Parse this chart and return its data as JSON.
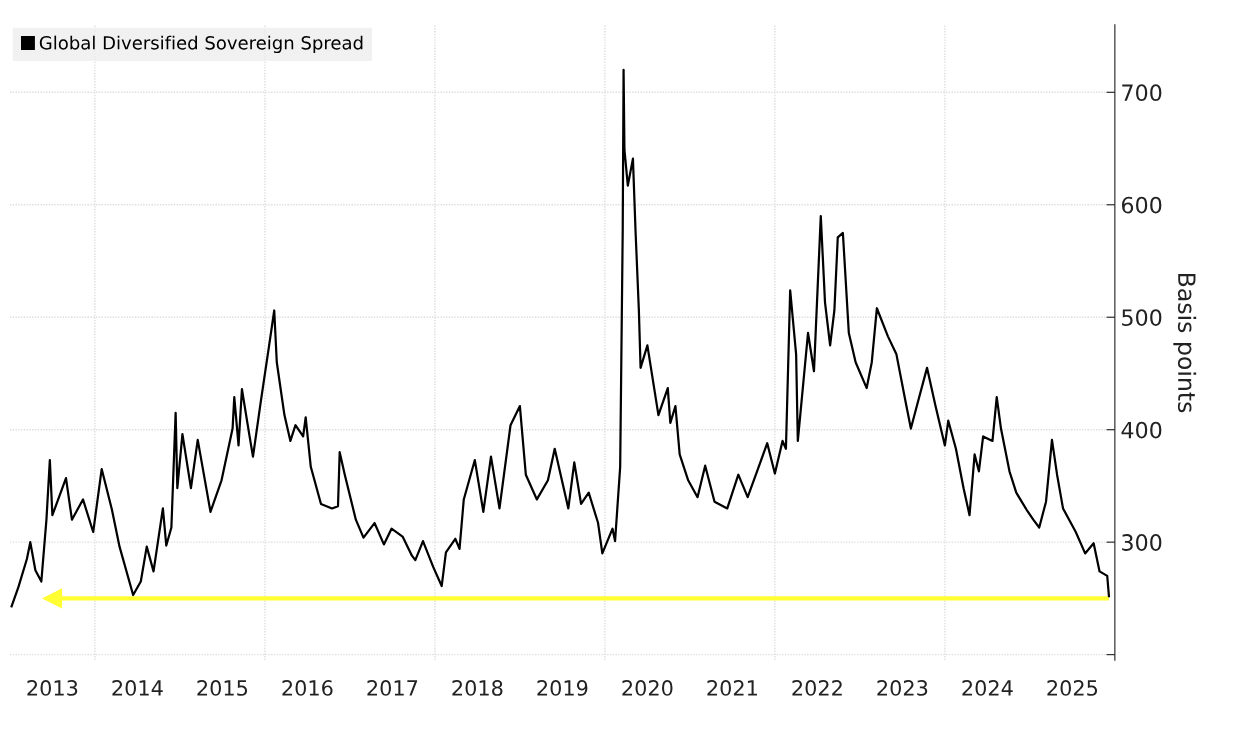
{
  "chart_data": {
    "type": "line",
    "ylabel": "Basis points",
    "xlim": [
      2013.0,
      2026.0
    ],
    "xticks": [
      {
        "value": 2013.5,
        "label": "2013"
      },
      {
        "value": 2014.0,
        "label": null
      },
      {
        "value": 2014.5,
        "label": "2014"
      },
      {
        "value": 2015.5,
        "label": "2015"
      },
      {
        "value": 2016.0,
        "label": null
      },
      {
        "value": 2016.5,
        "label": "2016"
      },
      {
        "value": 2017.5,
        "label": "2017"
      },
      {
        "value": 2018.0,
        "label": null
      },
      {
        "value": 2018.5,
        "label": "2018"
      },
      {
        "value": 2019.5,
        "label": "2019"
      },
      {
        "value": 2020.0,
        "label": null
      },
      {
        "value": 2020.5,
        "label": "2020"
      },
      {
        "value": 2021.5,
        "label": "2021"
      },
      {
        "value": 2022.0,
        "label": null
      },
      {
        "value": 2022.5,
        "label": "2022"
      },
      {
        "value": 2023.5,
        "label": "2023"
      },
      {
        "value": 2024.0,
        "label": null
      },
      {
        "value": 2024.5,
        "label": "2024"
      },
      {
        "value": 2025.5,
        "label": "2025"
      },
      {
        "value": 2026.0,
        "label": null
      }
    ],
    "ylim": [
      195,
      760
    ],
    "yticks": [
      {
        "value": 200,
        "label": null
      },
      300,
      400,
      500,
      600,
      700
    ],
    "grid": true,
    "legend": "top left",
    "marker": "none",
    "line_style": "solid",
    "ref_lines": [
      {
        "axis": "y",
        "value": 250,
        "color": "#ffff33"
      }
    ],
    "series": [
      {
        "name": "Global Diversified Sovereign Spread",
        "color": "#000000",
        "x": [
          2013.02,
          2013.1,
          2013.2,
          2013.24,
          2013.3,
          2013.37,
          2013.43,
          2013.47,
          2013.5,
          2013.66,
          2013.73,
          2013.86,
          2013.98,
          2014.08,
          2014.2,
          2014.29,
          2014.45,
          2014.54,
          2014.61,
          2014.69,
          2014.8,
          2014.84,
          2014.9,
          2014.95,
          2014.97,
          2015.03,
          2015.13,
          2015.21,
          2015.36,
          2015.49,
          2015.62,
          2015.64,
          2015.69,
          2015.73,
          2015.82,
          2015.86,
          2015.95,
          2016.05,
          2016.11,
          2016.14,
          2016.23,
          2016.3,
          2016.36,
          2016.45,
          2016.48,
          2016.54,
          2016.66,
          2016.79,
          2016.86,
          2016.88,
          2016.94,
          2017.07,
          2017.16,
          2017.29,
          2017.4,
          2017.49,
          2017.62,
          2017.73,
          2017.77,
          2017.86,
          2017.98,
          2018.08,
          2018.13,
          2018.24,
          2018.29,
          2018.34,
          2018.47,
          2018.57,
          2018.66,
          2018.76,
          2018.89,
          2019.0,
          2019.07,
          2019.2,
          2019.33,
          2019.41,
          2019.57,
          2019.64,
          2019.72,
          2019.81,
          2019.92,
          2019.97,
          2020.09,
          2020.12,
          2020.18,
          2020.21,
          2020.22,
          2020.23,
          2020.27,
          2020.33,
          2020.36,
          2020.4,
          2020.42,
          2020.5,
          2020.63,
          2020.74,
          2020.77,
          2020.83,
          2020.88,
          2020.98,
          2021.09,
          2021.18,
          2021.29,
          2021.44,
          2021.57,
          2021.68,
          2021.8,
          2021.91,
          2022.0,
          2022.09,
          2022.13,
          2022.18,
          2022.25,
          2022.27,
          2022.39,
          2022.46,
          2022.54,
          2022.59,
          2022.65,
          2022.7,
          2022.74,
          2022.8,
          2022.87,
          2022.95,
          2023.08,
          2023.14,
          2023.2,
          2023.33,
          2023.43,
          2023.54,
          2023.6,
          2023.67,
          2023.79,
          2023.89,
          2024.0,
          2024.04,
          2024.13,
          2024.22,
          2024.29,
          2024.35,
          2024.4,
          2024.45,
          2024.56,
          2024.61,
          2024.66,
          2024.76,
          2024.84,
          2024.96,
          2025.04,
          2025.11,
          2025.19,
          2025.26,
          2025.32,
          2025.39,
          2025.54,
          2025.65,
          2025.75,
          2025.82,
          2025.91,
          2025.93
        ],
        "values": [
          243,
          260,
          285,
          300,
          275,
          265,
          320,
          373,
          324,
          357,
          320,
          338,
          309,
          365,
          329,
          296,
          253,
          265,
          296,
          274,
          330,
          297,
          313,
          415,
          348,
          396,
          348,
          391,
          327,
          355,
          401,
          429,
          386,
          436,
          394,
          376,
          424,
          475,
          506,
          460,
          413,
          390,
          404,
          394,
          411,
          367,
          334,
          330,
          332,
          380,
          360,
          320,
          304,
          317,
          298,
          312,
          305,
          288,
          284,
          301,
          278,
          261,
          291,
          303,
          294,
          338,
          373,
          327,
          376,
          330,
          404,
          421,
          360,
          338,
          355,
          383,
          330,
          371,
          334,
          344,
          317,
          290,
          312,
          301,
          367,
          578,
          720,
          649,
          617,
          641,
          578,
          506,
          455,
          475,
          413,
          437,
          406,
          421,
          378,
          355,
          340,
          368,
          336,
          330,
          360,
          340,
          365,
          388,
          361,
          390,
          383,
          524,
          467,
          390,
          486,
          452,
          590,
          513,
          475,
          506,
          571,
          575,
          486,
          460,
          437,
          460,
          508,
          483,
          467,
          424,
          401,
          421,
          455,
          421,
          386,
          408,
          383,
          348,
          324,
          378,
          363,
          394,
          390,
          429,
          401,
          363,
          344,
          329,
          320,
          313,
          336,
          391,
          360,
          330,
          309,
          290,
          299,
          274,
          270,
          252
        ]
      }
    ]
  }
}
